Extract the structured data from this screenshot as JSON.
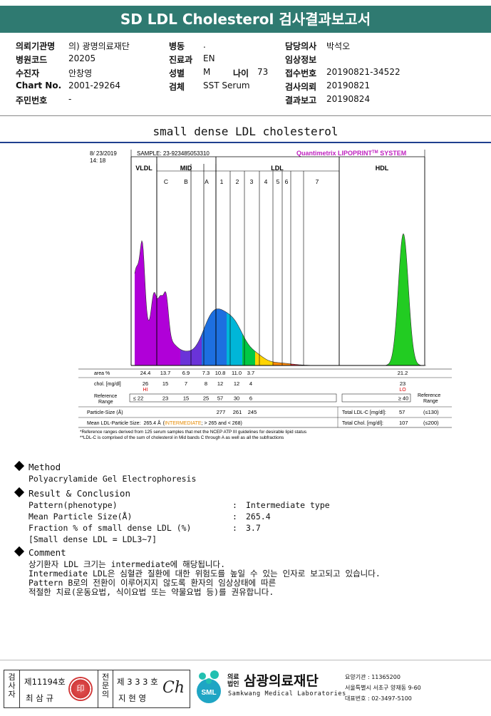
{
  "title": "SD LDL Cholesterol 검사결과보고서",
  "header": {
    "col1": [
      {
        "label": "의뢰기관명",
        "value": "의) 광명의료재단"
      },
      {
        "label": "병원코드",
        "value": "20205"
      },
      {
        "label": "수진자",
        "value": "안창영"
      },
      {
        "label": "Chart No.",
        "value": "2001-29264"
      },
      {
        "label": "주민번호",
        "value": "-"
      }
    ],
    "col2": [
      {
        "label": "병동",
        "value": "."
      },
      {
        "label": "진료과",
        "value": "EN"
      },
      {
        "label": "성별",
        "value": "M"
      },
      {
        "label": "검체",
        "value": "SST Serum"
      }
    ],
    "age": {
      "label": "나이",
      "value": "73"
    },
    "col3": [
      {
        "label": "담당의사",
        "value": "박석오"
      },
      {
        "label": "임상정보",
        "value": ""
      },
      {
        "label": "접수번호",
        "value": "20190821-34522"
      },
      {
        "label": "검사의뢰",
        "value": "20190821"
      },
      {
        "label": "결과보고",
        "value": "20190824"
      }
    ]
  },
  "subtitle": "small dense LDL cholesterol",
  "chart_data": {
    "type": "area",
    "date": "8/ 23/2019",
    "time": "14: 18",
    "sample": "SAMPLE:  23-923485053310",
    "brand": "Quantimetrix LIPOPRINT",
    "brand_tm": "TM",
    "brand_suffix": " SYSTEM",
    "groups": [
      "VLDL",
      "MID",
      "LDL",
      "HDL"
    ],
    "bands": [
      "C",
      "B",
      "A",
      "1",
      "2",
      "3",
      "4",
      "5",
      "6",
      "7"
    ],
    "rows": {
      "area_label": "area %",
      "area": [
        "24.4",
        "13.7",
        "6.9",
        "7.3",
        "10.8",
        "11.0",
        "3.7",
        "21.2"
      ],
      "chol_label": "chol. [mg/dl]",
      "chol": [
        "26",
        "15",
        "7",
        "8",
        "12",
        "12",
        "4",
        "23"
      ],
      "flags": {
        "vldl": "HI",
        "hdl": "LO"
      },
      "ref_label": "Reference Range",
      "ref": [
        "≤  22",
        "23",
        "15",
        "25",
        "57",
        "30",
        "6",
        "≥ 40"
      ],
      "ref_label_right": "Reference Range",
      "particle_label": "Particle-Size (Å)",
      "particle": [
        "277",
        "261",
        "245"
      ],
      "total_ldlc_label": "Total LDL-C [mg/dl]:",
      "total_ldlc": "57",
      "total_ldlc_ref": "(≤130)",
      "mean_label": "Mean LDL-Particle Size:",
      "mean_value": "265.4 Å",
      "mean_type": "INTERMEDIATE",
      "mean_range": "; > 265 and < 268)",
      "total_chol_label": "Total Chol. [mg/dl]:",
      "total_chol": "107",
      "total_chol_ref": "(≤200)"
    },
    "footnotes": [
      "*Reference ranges derived from 125 serum samples that met the NCEP ATP III guidelines for desirable lipid status",
      "**LDL-C is comprised of the sum of cholesterol in Mid bands C through A as well as all the subfractions"
    ]
  },
  "method": {
    "heading": "Method",
    "text": "Polyacrylamide Gel Electrophoresis"
  },
  "result": {
    "heading": "Result & Conclusion",
    "rows": [
      {
        "label": "Pattern(phenotype)",
        "value": "Intermediate type"
      },
      {
        "label": "Mean Particle Size(Å)",
        "value": "265.4"
      },
      {
        "label": "Fraction % of small dense LDL (%)",
        "value": "3.7"
      }
    ],
    "note": "[Small dense LDL = LDL3~7]"
  },
  "comment": {
    "heading": "Comment",
    "lines": [
      "상기환자 LDL 크기는 intermediate에 해당됩니다.",
      "Intermediate LDL은 심혈관 질환에 대한 위험도를 높일 수 있는 인자로 보고되고 있습니다.",
      "Pattern B로의 전환이 이루어지지 않도록 환자의 임상상태에 따른",
      "적절한 치료(운동요법, 식이요법 또는 약물요법 등)를 권유합니다."
    ]
  },
  "footer": {
    "tester_vlabel": "검사자",
    "tester_no": "제11194호",
    "tester_name": "최 삼 규",
    "seal_text": "印",
    "confirm_vlabel": "전문의",
    "confirm_no": "제 3 3 3 호",
    "confirm_name": "지 현 영",
    "signature": "Ch",
    "logo_badge": "SML",
    "org_prefix": "의료\n법인",
    "org_name": "삼광의료재단",
    "org_en": "Samkwang Medical Laboratories",
    "inst_no": "요양기관 : 11365200",
    "address": "서울특별시 서초구 양재동 9-60",
    "phone": "대표번호 : 02-3497-5100"
  }
}
